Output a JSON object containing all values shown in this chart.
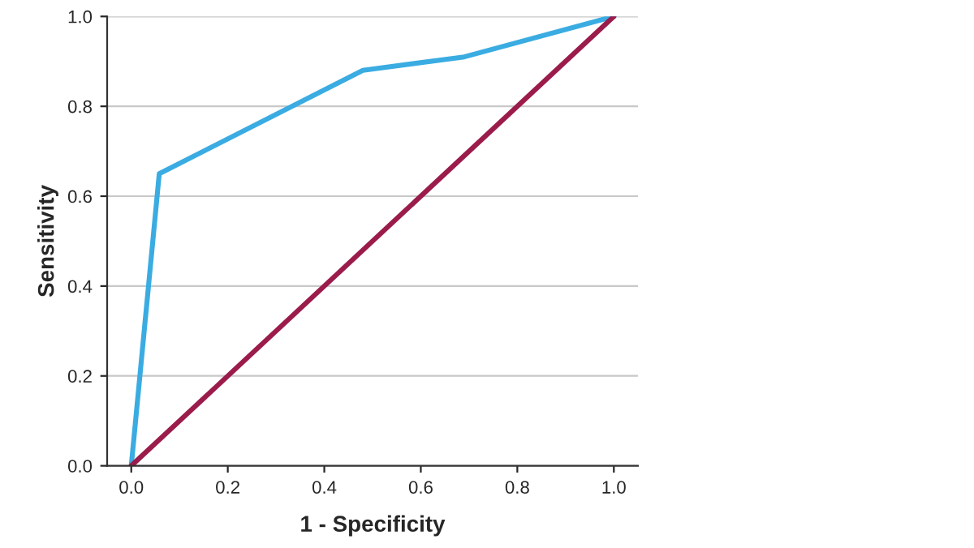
{
  "chart_data": {
    "type": "line",
    "xlabel": "1 - Specificity",
    "ylabel": "Sensitivity",
    "xlim": [
      -0.05,
      1.05
    ],
    "ylim": [
      0,
      1.0
    ],
    "xticks": [
      {
        "value": 0,
        "label": "0.0"
      },
      {
        "value": 0.2,
        "label": "0.2"
      },
      {
        "value": 0.4,
        "label": "0.4"
      },
      {
        "value": 0.6,
        "label": "0.6"
      },
      {
        "value": 0.8,
        "label": "0.8"
      },
      {
        "value": 1,
        "label": "1.0"
      }
    ],
    "yticks": [
      {
        "value": 0,
        "label": "0.0"
      },
      {
        "value": 0.2,
        "label": "0.2"
      },
      {
        "value": 0.4,
        "label": "0.4"
      },
      {
        "value": 0.6,
        "label": "0.6"
      },
      {
        "value": 0.8,
        "label": "0.8"
      },
      {
        "value": 1,
        "label": "1.0"
      }
    ],
    "grid": "y",
    "line_style": "solid",
    "marker": "none",
    "series": [
      {
        "color": "#3aace2",
        "x": [
          0,
          0.058,
          0.48,
          0.69,
          1
        ],
        "values": [
          0,
          0.65,
          0.88,
          0.91,
          1
        ]
      },
      {
        "color": "#9b1c4b",
        "x": [
          0,
          1
        ],
        "values": [
          0,
          1
        ]
      }
    ]
  }
}
